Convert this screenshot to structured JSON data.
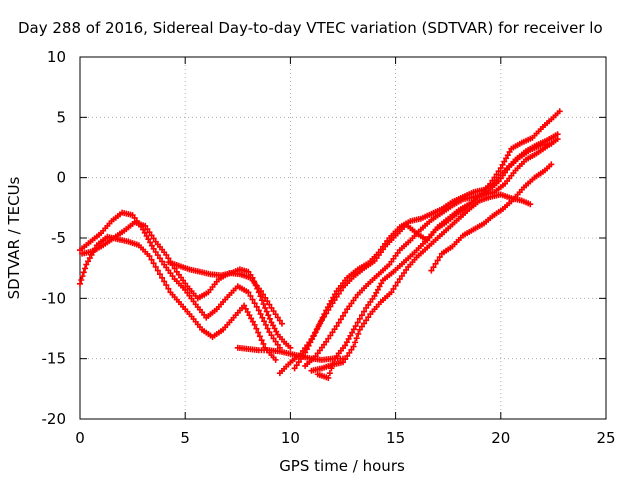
{
  "chart_data": {
    "type": "scatter",
    "title": "Day 288 of 2016, Sidereal Day-to-day VTEC variation (SDTVAR) for receiver lo",
    "xlabel": "GPS time / hours",
    "ylabel": "SDTVAR / TECUs",
    "xlim": [
      0,
      25
    ],
    "ylim": [
      -20,
      10
    ],
    "xticks": [
      "0",
      "5",
      "10",
      "15",
      "20",
      "25"
    ],
    "yticks": [
      "-20",
      "-15",
      "-10",
      "-5",
      "0",
      "5",
      "10"
    ],
    "grid": true,
    "marker": "+",
    "color": "#ff0000",
    "series": [
      {
        "points": [
          [
            0.0,
            -6.0
          ],
          [
            0.5,
            -5.3
          ],
          [
            1.0,
            -4.6
          ],
          [
            1.5,
            -3.6
          ],
          [
            2.0,
            -2.9
          ],
          [
            2.5,
            -3.1
          ],
          [
            3.0,
            -4.3
          ],
          [
            3.5,
            -5.9
          ],
          [
            4.0,
            -7.2
          ],
          [
            4.5,
            -8.4
          ],
          [
            5.0,
            -9.3
          ],
          [
            5.5,
            -10.5
          ],
          [
            6.0,
            -11.6
          ],
          [
            6.5,
            -10.9
          ],
          [
            7.0,
            -9.9
          ],
          [
            7.5,
            -9.0
          ],
          [
            8.0,
            -9.5
          ],
          [
            8.5,
            -11.0
          ],
          [
            9.0,
            -12.8
          ],
          [
            9.5,
            -14.1
          ]
        ]
      },
      {
        "points": [
          [
            0.1,
            -6.3
          ],
          [
            0.6,
            -6.1
          ],
          [
            1.1,
            -5.6
          ],
          [
            1.6,
            -5.0
          ],
          [
            2.1,
            -4.4
          ],
          [
            2.6,
            -3.7
          ],
          [
            3.1,
            -4.0
          ],
          [
            3.6,
            -5.3
          ],
          [
            4.1,
            -6.4
          ],
          [
            4.6,
            -7.8
          ],
          [
            5.1,
            -9.0
          ],
          [
            5.6,
            -10.0
          ],
          [
            6.1,
            -9.5
          ],
          [
            6.6,
            -8.4
          ],
          [
            7.1,
            -7.9
          ],
          [
            7.6,
            -8.0
          ],
          [
            8.1,
            -8.3
          ],
          [
            8.6,
            -9.4
          ],
          [
            9.1,
            -10.8
          ],
          [
            9.6,
            -12.1
          ]
        ]
      },
      {
        "points": [
          [
            0.0,
            -8.8
          ],
          [
            0.3,
            -7.2
          ],
          [
            0.8,
            -5.6
          ],
          [
            1.3,
            -4.9
          ],
          [
            1.8,
            -5.1
          ],
          [
            2.3,
            -5.3
          ],
          [
            2.8,
            -5.6
          ],
          [
            3.3,
            -6.5
          ],
          [
            3.8,
            -8.0
          ],
          [
            4.3,
            -9.5
          ],
          [
            4.8,
            -10.5
          ],
          [
            5.3,
            -11.5
          ],
          [
            5.8,
            -12.6
          ],
          [
            6.3,
            -13.2
          ],
          [
            6.8,
            -12.6
          ],
          [
            7.3,
            -11.6
          ],
          [
            7.8,
            -10.6
          ],
          [
            8.3,
            -12.2
          ],
          [
            8.8,
            -14.1
          ],
          [
            9.3,
            -15.1
          ]
        ]
      },
      {
        "points": [
          [
            4.2,
            -7.0
          ],
          [
            4.7,
            -7.3
          ],
          [
            5.2,
            -7.6
          ],
          [
            5.7,
            -7.8
          ],
          [
            6.2,
            -8.0
          ],
          [
            6.7,
            -8.1
          ],
          [
            7.2,
            -7.9
          ],
          [
            7.6,
            -7.6
          ],
          [
            8.0,
            -7.8
          ],
          [
            8.2,
            -8.3
          ],
          [
            8.5,
            -9.5
          ],
          [
            8.8,
            -10.8
          ],
          [
            9.1,
            -12.0
          ],
          [
            9.4,
            -13.0
          ],
          [
            9.7,
            -13.6
          ],
          [
            10.0,
            -14.1
          ]
        ]
      },
      {
        "points": [
          [
            7.5,
            -14.1
          ],
          [
            8.0,
            -14.2
          ],
          [
            8.5,
            -14.3
          ],
          [
            9.0,
            -14.3
          ],
          [
            9.5,
            -14.4
          ],
          [
            10.0,
            -14.6
          ],
          [
            10.5,
            -14.8
          ],
          [
            11.0,
            -15.0
          ],
          [
            11.5,
            -15.1
          ],
          [
            12.0,
            -15.0
          ],
          [
            12.5,
            -15.0
          ]
        ]
      },
      {
        "points": [
          [
            9.5,
            -16.2
          ],
          [
            10.0,
            -15.3
          ],
          [
            10.5,
            -14.6
          ],
          [
            11.0,
            -13.4
          ],
          [
            11.5,
            -11.8
          ],
          [
            12.0,
            -10.4
          ],
          [
            12.5,
            -9.1
          ],
          [
            13.0,
            -8.2
          ],
          [
            13.5,
            -7.5
          ],
          [
            14.0,
            -6.9
          ],
          [
            14.5,
            -5.7
          ],
          [
            15.0,
            -4.8
          ],
          [
            15.5,
            -3.9
          ],
          [
            16.0,
            -4.6
          ],
          [
            16.5,
            -5.2
          ],
          [
            17.0,
            -4.1
          ],
          [
            17.5,
            -3.4
          ],
          [
            18.0,
            -2.7
          ],
          [
            18.5,
            -2.2
          ],
          [
            19.0,
            -1.5
          ],
          [
            19.5,
            -0.5
          ],
          [
            20.0,
            0.8
          ],
          [
            20.5,
            2.4
          ],
          [
            21.0,
            2.9
          ],
          [
            21.5,
            3.3
          ],
          [
            22.0,
            4.2
          ],
          [
            22.5,
            5.0
          ],
          [
            22.8,
            5.5
          ]
        ]
      },
      {
        "points": [
          [
            10.2,
            -15.8
          ],
          [
            10.7,
            -14.5
          ],
          [
            11.2,
            -12.8
          ],
          [
            11.7,
            -11.0
          ],
          [
            12.2,
            -9.4
          ],
          [
            12.7,
            -8.3
          ],
          [
            13.2,
            -7.6
          ],
          [
            13.7,
            -7.1
          ],
          [
            14.2,
            -6.2
          ],
          [
            14.7,
            -5.0
          ],
          [
            15.2,
            -4.1
          ],
          [
            15.7,
            -3.6
          ],
          [
            16.2,
            -3.4
          ],
          [
            16.7,
            -3.0
          ],
          [
            17.2,
            -2.6
          ],
          [
            17.7,
            -2.0
          ],
          [
            18.2,
            -1.6
          ],
          [
            18.7,
            -1.2
          ],
          [
            19.2,
            -1.0
          ],
          [
            19.7,
            -0.4
          ],
          [
            20.2,
            0.6
          ],
          [
            20.7,
            1.5
          ],
          [
            21.2,
            2.2
          ],
          [
            21.7,
            2.7
          ],
          [
            22.2,
            3.1
          ],
          [
            22.7,
            3.6
          ]
        ]
      },
      {
        "points": [
          [
            10.7,
            -15.6
          ],
          [
            11.2,
            -14.8
          ],
          [
            11.7,
            -13.6
          ],
          [
            12.2,
            -12.3
          ],
          [
            12.7,
            -10.9
          ],
          [
            13.2,
            -9.7
          ],
          [
            13.7,
            -8.8
          ],
          [
            14.2,
            -8.0
          ],
          [
            14.7,
            -7.2
          ],
          [
            15.2,
            -6.0
          ],
          [
            15.7,
            -5.2
          ],
          [
            16.2,
            -4.3
          ],
          [
            16.7,
            -3.5
          ],
          [
            17.2,
            -2.9
          ],
          [
            17.7,
            -2.3
          ],
          [
            18.2,
            -1.8
          ],
          [
            18.7,
            -1.6
          ],
          [
            19.2,
            -1.4
          ],
          [
            19.7,
            -1.2
          ],
          [
            20.2,
            -0.5
          ],
          [
            20.7,
            0.6
          ],
          [
            21.2,
            1.5
          ],
          [
            21.7,
            2.0
          ],
          [
            22.2,
            2.6
          ],
          [
            22.7,
            3.2
          ]
        ]
      },
      {
        "points": [
          [
            11.0,
            -16.0
          ],
          [
            11.5,
            -15.8
          ],
          [
            12.0,
            -15.5
          ],
          [
            12.5,
            -15.3
          ],
          [
            13.0,
            -14.0
          ],
          [
            13.3,
            -12.6
          ],
          [
            13.8,
            -11.3
          ],
          [
            14.3,
            -10.3
          ],
          [
            14.8,
            -9.5
          ],
          [
            15.2,
            -8.4
          ],
          [
            15.6,
            -7.4
          ],
          [
            16.0,
            -6.6
          ],
          [
            16.5,
            -5.8
          ],
          [
            17.0,
            -5.0
          ],
          [
            17.5,
            -4.2
          ],
          [
            18.0,
            -3.4
          ],
          [
            18.5,
            -2.6
          ],
          [
            19.0,
            -1.9
          ],
          [
            19.5,
            -1.6
          ],
          [
            20.0,
            -1.4
          ],
          [
            20.5,
            -1.7
          ],
          [
            21.0,
            -1.9
          ],
          [
            21.4,
            -2.2
          ]
        ]
      },
      {
        "points": [
          [
            11.3,
            -16.3
          ],
          [
            11.8,
            -16.6
          ],
          [
            12.1,
            -15.0
          ],
          [
            12.6,
            -13.9
          ],
          [
            13.1,
            -12.3
          ],
          [
            13.6,
            -10.8
          ],
          [
            14.0,
            -9.8
          ],
          [
            14.4,
            -8.5
          ],
          [
            14.9,
            -7.8
          ],
          [
            15.4,
            -7.0
          ],
          [
            15.9,
            -6.2
          ],
          [
            16.4,
            -5.3
          ],
          [
            16.9,
            -4.3
          ],
          [
            17.4,
            -3.7
          ],
          [
            17.9,
            -3.0
          ],
          [
            18.4,
            -2.4
          ],
          [
            18.9,
            -1.6
          ],
          [
            19.4,
            -1.1
          ],
          [
            19.9,
            -0.3
          ],
          [
            20.4,
            0.9
          ],
          [
            20.9,
            1.7
          ],
          [
            21.4,
            2.3
          ],
          [
            21.9,
            2.7
          ],
          [
            22.4,
            2.8
          ]
        ]
      },
      {
        "points": [
          [
            16.7,
            -7.7
          ],
          [
            17.2,
            -6.3
          ],
          [
            17.7,
            -5.7
          ],
          [
            18.2,
            -4.8
          ],
          [
            18.7,
            -4.3
          ],
          [
            19.2,
            -3.8
          ],
          [
            19.6,
            -3.2
          ],
          [
            20.1,
            -2.6
          ],
          [
            20.6,
            -1.8
          ],
          [
            21.1,
            -0.8
          ],
          [
            21.6,
            0.0
          ],
          [
            22.1,
            0.6
          ],
          [
            22.4,
            1.1
          ]
        ]
      }
    ]
  }
}
